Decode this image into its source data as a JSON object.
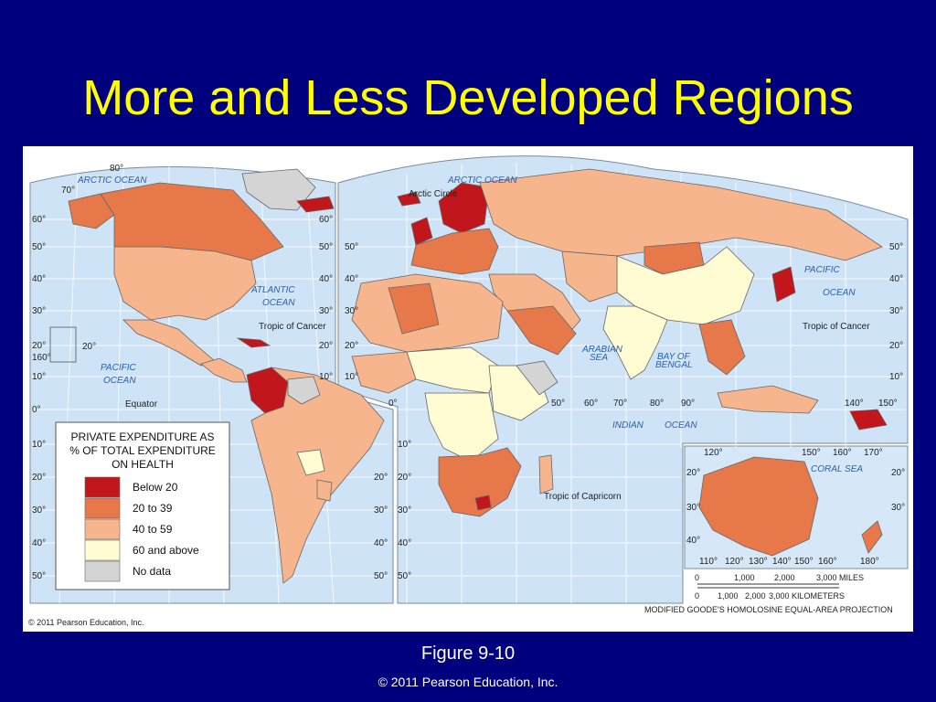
{
  "slide": {
    "title": "More and Less Developed Regions",
    "figure": "Figure 9-10",
    "copyright": "© 2011 Pearson Education, Inc."
  },
  "map": {
    "credit": "© 2011 Pearson Education, Inc.",
    "legend": {
      "title_lines": [
        "PRIVATE EXPENDITURE AS",
        "% OF TOTAL EXPENDITURE",
        "ON HEALTH"
      ],
      "items": [
        {
          "label": "Below 20",
          "color": "#c0161c"
        },
        {
          "label": "20 to 39",
          "color": "#e6784a"
        },
        {
          "label": "40 to 59",
          "color": "#f6b58d"
        },
        {
          "label": "60 and above",
          "color": "#fffbd2"
        },
        {
          "label": "No data",
          "color": "#d4d4d4"
        }
      ]
    },
    "oceans": {
      "arctic_left": "ARCTIC OCEAN",
      "arctic_right": "ARCTIC OCEAN",
      "atlantic_1": "ATLANTIC",
      "atlantic_2": "OCEAN",
      "pacific_left_1": "PACIFIC",
      "pacific_left_2": "OCEAN",
      "pacific_right_1": "PACIFIC",
      "pacific_right_2": "OCEAN",
      "indian": "INDIAN",
      "indian_ocean": "OCEAN",
      "arabian_1": "ARABIAN",
      "arabian_2": "SEA",
      "bengal_1": "BAY OF",
      "bengal_2": "BENGAL",
      "coral": "CORAL  SEA"
    },
    "labels": {
      "arctic_circle": "Arctic Circle",
      "tropic_cancer_left": "Tropic of Cancer",
      "tropic_cancer_right": "Tropic of Cancer",
      "equator": "Equator",
      "tropic_capricorn": "Tropic of Capricorn"
    },
    "latitude_left": [
      "80°",
      "70°",
      "60°",
      "50°",
      "40°",
      "30°",
      "20°",
      "10°",
      "0°",
      "10°",
      "20°",
      "30°",
      "40°",
      "50°"
    ],
    "latitude_mid": [
      "60°",
      "50°",
      "40°",
      "30°",
      "20°",
      "10°",
      "20°",
      "30°",
      "40°",
      "50°"
    ],
    "latitude_mid2": [
      "50°",
      "40°",
      "30°",
      "20°",
      "10°",
      "10°",
      "20°",
      "30°",
      "40°",
      "50°"
    ],
    "latitude_right": [
      "50°",
      "40°",
      "30°",
      "20°",
      "10°"
    ],
    "equator_longitudes": [
      "0°",
      "50°",
      "60°",
      "70°",
      "80°",
      "90°",
      "140°",
      "150°"
    ],
    "inset_top": [
      "120°",
      "150°",
      "160°",
      "170°"
    ],
    "inset_bottom": [
      "110°",
      "120°",
      "130°",
      "140°",
      "150°",
      "160°",
      "180°"
    ],
    "inset_left": [
      "20°",
      "30°",
      "40°"
    ],
    "inset_right": [
      "20°",
      "30°"
    ],
    "misc": {
      "lon160": "160°",
      "lon20": "20°"
    },
    "scale": {
      "miles": [
        "0",
        "1,000",
        "2,000",
        "3,000 MILES"
      ],
      "km": [
        "0",
        "1,000",
        "2,000",
        "3,000 KILOMETERS"
      ]
    },
    "projection": "MODIFIED GOODE'S HOMOLOSINE EQUAL-AREA PROJECTION"
  }
}
